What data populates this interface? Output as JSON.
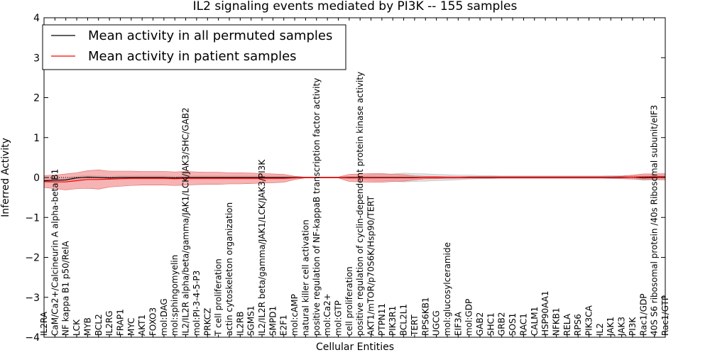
{
  "chart_data": {
    "type": "line",
    "title": "IL2 signaling events mediated by PI3K -- 155 samples",
    "xlabel": "Cellular Entities",
    "ylabel": "Inferred Activity",
    "ylim": [
      -4,
      4
    ],
    "yticks": [
      -4,
      -3,
      -2,
      -1,
      0,
      1,
      2,
      3,
      4
    ],
    "legend_position": "top-left",
    "categories": [
      "IL2RA",
      "CaM/Ca2+/Calcineurin A alpha-beta B1",
      "NF kappa B1 p50/RelA",
      "LCK",
      "MYB",
      "BCL2",
      "IL2RG",
      "FRAP1",
      "MYC",
      "AKT1",
      "FOXO3",
      "mol:DAG",
      "mol:sphingomyelin",
      "IL2/IL2R alpha/beta/gamma/JAK1/LCK/JAK3/SHC/GAB2",
      "mol:PI-3-4-5-P3",
      "PRKCZ",
      "T cell proliferation",
      "actin cytoskeleton organization",
      "IL2RB",
      "SGMS1",
      "IL2/IL2R beta/gamma/JAK1/LCK/JAK3/PI3K",
      "SMPD1",
      "E2F1",
      "mol:cAMP",
      "natural killer cell activation",
      "positive regulation of NF-kappaB transcription factor activity",
      "mol:Ca2+",
      "mol:GTP",
      "cell proliferation",
      "positive regulation of cyclin-dependent protein kinase activity",
      "AKT1/mTOR/p70S6K/Hsp90/TERT",
      "PTPN11",
      "PIK3R1",
      "BCL2L1",
      "TERT",
      "RPS6KB1",
      "UGCG",
      "mol:glucosylceramide",
      "EIF3A",
      "mol:GDP",
      "GAB2",
      "SHC1",
      "GRB2",
      "SOS1",
      "RAC1",
      "CALM1",
      "HSP90AA1",
      "NFKB1",
      "RELA",
      "RPS6",
      "PIK3CA",
      "IL2",
      "JAK1",
      "JAK3",
      "PI3K",
      "Rac1/GDP",
      "40S S6 ribosomal protein /40s Ribosomal subunit/eIF3",
      "Rac1/GTP"
    ],
    "series": [
      {
        "name": "Mean activity in all permuted samples",
        "color": "#000000",
        "values": [
          -0.08,
          -0.07,
          -0.06,
          -0.01,
          0.01,
          0.0,
          -0.01,
          0.0,
          0.0,
          0.0,
          0.0,
          0.0,
          -0.01,
          0.0,
          0.0,
          0.0,
          0.0,
          0.0,
          0.0,
          0.0,
          0.0,
          0.0,
          0.0,
          0.0,
          0.0,
          0.0,
          0.0,
          0.0,
          0.0,
          0.0,
          0.0,
          0.0,
          0.0,
          0.0,
          0.0,
          0.0,
          0.0,
          0.0,
          0.0,
          0.01,
          0.01,
          0.01,
          0.01,
          0.01,
          0.01,
          0.01,
          0.01,
          0.01,
          0.01,
          0.01,
          0.01,
          0.01,
          0.01,
          0.01,
          0.01,
          -0.01,
          0.0,
          0.01
        ],
        "spread": [
          0.05,
          0.05,
          0.05,
          0.04,
          0.04,
          0.04,
          0.04,
          0.04,
          0.04,
          0.04,
          0.04,
          0.04,
          0.04,
          0.04,
          0.04,
          0.04,
          0.04,
          0.04,
          0.04,
          0.04,
          0.04,
          0.04,
          0.04,
          0.02,
          0.01,
          0.01,
          0.01,
          0.01,
          0.03,
          0.04,
          0.07,
          0.08,
          0.09,
          0.11,
          0.1,
          0.09,
          0.08,
          0.07,
          0.06,
          0.05,
          0.04,
          0.04,
          0.03,
          0.03,
          0.03,
          0.03,
          0.03,
          0.03,
          0.03,
          0.03,
          0.03,
          0.03,
          0.04,
          0.04,
          0.04,
          0.06,
          0.06,
          0.06
        ]
      },
      {
        "name": "Mean activity in patient samples",
        "color": "#ff0000",
        "values": [
          -0.1,
          -0.11,
          -0.11,
          -0.08,
          -0.05,
          -0.05,
          -0.04,
          -0.03,
          -0.02,
          -0.02,
          -0.02,
          -0.02,
          -0.03,
          -0.02,
          -0.02,
          -0.02,
          -0.02,
          -0.02,
          -0.02,
          -0.02,
          -0.02,
          -0.02,
          -0.02,
          -0.01,
          0.0,
          0.0,
          0.0,
          0.0,
          -0.01,
          -0.01,
          -0.01,
          -0.01,
          -0.01,
          -0.01,
          -0.01,
          0.0,
          0.0,
          0.0,
          0.0,
          0.0,
          0.0,
          0.0,
          0.0,
          0.0,
          0.0,
          0.0,
          0.0,
          0.0,
          0.0,
          0.0,
          0.0,
          0.0,
          0.0,
          0.0,
          0.01,
          0.02,
          0.02,
          0.02
        ],
        "spread": [
          0.15,
          0.17,
          0.2,
          0.2,
          0.22,
          0.24,
          0.2,
          0.19,
          0.18,
          0.17,
          0.17,
          0.17,
          0.17,
          0.17,
          0.16,
          0.15,
          0.15,
          0.14,
          0.14,
          0.13,
          0.12,
          0.11,
          0.1,
          0.04,
          0.01,
          0.01,
          0.01,
          0.01,
          0.09,
          0.1,
          0.11,
          0.11,
          0.09,
          0.08,
          0.05,
          0.03,
          0.03,
          0.02,
          0.02,
          0.02,
          0.02,
          0.02,
          0.02,
          0.02,
          0.02,
          0.02,
          0.02,
          0.02,
          0.02,
          0.02,
          0.02,
          0.02,
          0.02,
          0.03,
          0.05,
          0.07,
          0.07,
          0.08
        ]
      }
    ]
  }
}
